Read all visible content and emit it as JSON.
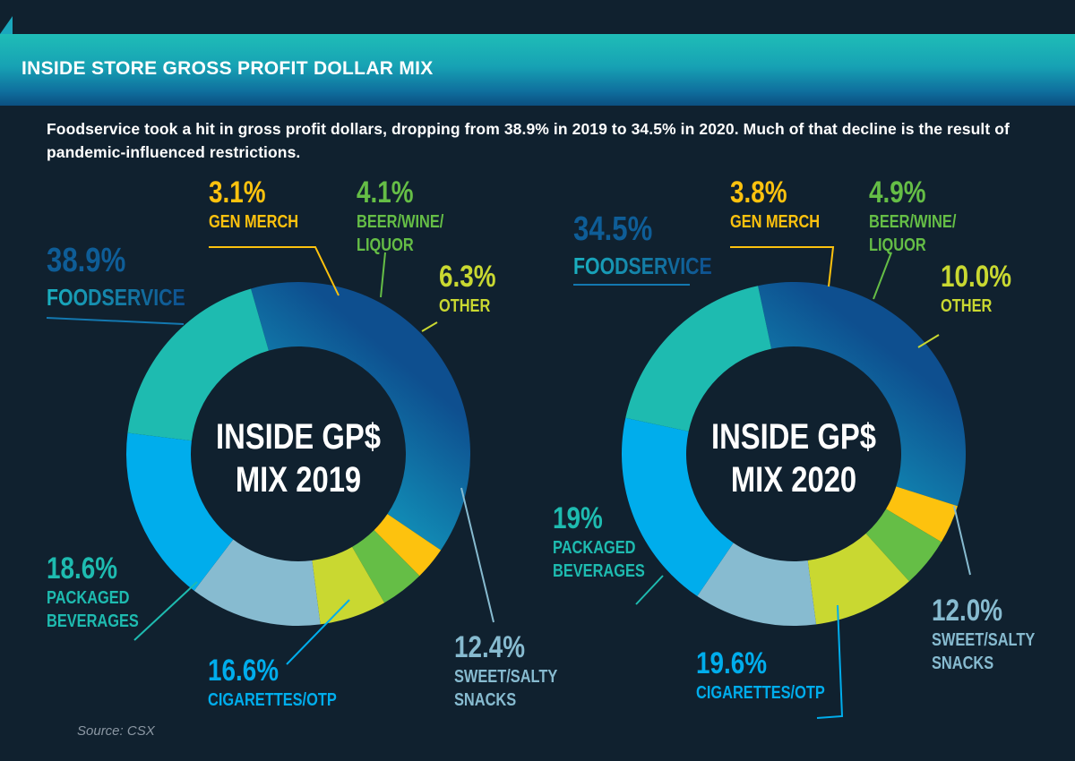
{
  "header": {
    "title": "INSIDE STORE GROSS PROFIT DOLLAR MIX"
  },
  "intro": "Foodservice took a hit in gross profit dollars, dropping from 38.9% in 2019 to 34.5% in 2020. Much of that decline is the result of pandemic-influenced restrictions.",
  "source": "Source: CSX",
  "colors": {
    "background": "#10212f",
    "foodservice": "#0e5d97",
    "foodservice_light": "#1ab7bb",
    "gen_merch": "#fdc20e",
    "beer_wine_liquor": "#65be46",
    "other": "#c9d831",
    "sweet_salty_snacks": "#87bbd0",
    "cigarettes_otp": "#00adec",
    "packaged_beverages": "#1ebbb0"
  },
  "chart_data": [
    {
      "type": "pie",
      "center_label": [
        "INSIDE GP$",
        "MIX 2019"
      ],
      "categories": [
        "FOODSERVICE",
        "GEN MERCH",
        "BEER/WINE/ LIQUOR",
        "OTHER",
        "SWEET/SALTY SNACKS",
        "CIGARETTES/OTP",
        "PACKAGED BEVERAGES"
      ],
      "values": [
        38.9,
        3.1,
        4.1,
        6.3,
        12.4,
        16.6,
        18.6
      ],
      "value_labels": [
        "38.9%",
        "3.1%",
        "4.1%",
        "6.3%",
        "12.4%",
        "16.6%",
        "18.6%"
      ],
      "label_lines": [
        [
          "FOODSERVICE"
        ],
        [
          "GEN MERCH"
        ],
        [
          "BEER/WINE/",
          "LIQUOR"
        ],
        [
          "OTHER"
        ],
        [
          "SWEET/SALTY",
          "SNACKS"
        ],
        [
          "CIGARETTES/OTP"
        ],
        [
          "PACKAGED",
          "BEVERAGES"
        ]
      ]
    },
    {
      "type": "pie",
      "center_label": [
        "INSIDE GP$",
        "MIX 2020"
      ],
      "categories": [
        "FOODSERVICE",
        "GEN MERCH",
        "BEER/WINE/ LIQUOR",
        "OTHER",
        "SWEET/SALTY SNACKS",
        "CIGARETTES/OTP",
        "PACKAGED BEVERAGES"
      ],
      "values": [
        34.5,
        3.8,
        4.9,
        10.0,
        12.0,
        19.6,
        19
      ],
      "value_labels": [
        "34.5%",
        "3.8%",
        "4.9%",
        "10.0%",
        "12.0%",
        "19.6%",
        "19%"
      ],
      "label_lines": [
        [
          "FOODSERVICE"
        ],
        [
          "GEN MERCH"
        ],
        [
          "BEER/WINE/",
          "LIQUOR"
        ],
        [
          "OTHER"
        ],
        [
          "SWEET/SALTY",
          "SNACKS"
        ],
        [
          "CIGARETTES/OTP"
        ],
        [
          "PACKAGED",
          "BEVERAGES"
        ]
      ]
    }
  ]
}
